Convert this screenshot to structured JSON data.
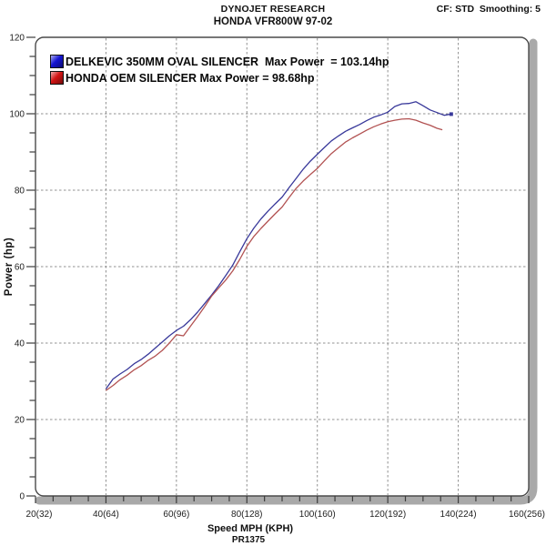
{
  "header": {
    "title_line1": "DYNOJET RESEARCH",
    "title_line2": "HONDA VFR800W 97-02",
    "settings": "CF: STD  Smoothing: 5"
  },
  "legend": {
    "items": [
      {
        "label": "DELKEVIC 350MM OVAL SILENCER  Max Power  = 103.14hp",
        "swatch_color": "#1414d2"
      },
      {
        "label": "HONDA OEM SILENCER Max Power = 98.68hp",
        "swatch_color": "#d21414"
      }
    ]
  },
  "axes": {
    "y_label": "Power (hp)",
    "x_label": "Speed MPH (KPH)",
    "run_id": "PR1375"
  },
  "chart_data": {
    "type": "line",
    "title": "DYNOJET RESEARCH - HONDA VFR800W 97-02",
    "xlabel": "Speed MPH (KPH)",
    "ylabel": "Power (hp)",
    "xlim": [
      20,
      160
    ],
    "ylim": [
      0,
      120
    ],
    "x_tick_values": [
      20,
      40,
      60,
      80,
      100,
      120,
      140,
      160
    ],
    "x_tick_labels": [
      "20(32)",
      "40(64)",
      "60(96)",
      "80(128)",
      "100(160)",
      "120(192)",
      "140(224)",
      "160(256)"
    ],
    "y_tick_values": [
      0,
      20,
      40,
      60,
      80,
      100,
      120
    ],
    "y_tick_labels": [
      "0",
      "20",
      "40",
      "60",
      "80",
      "100",
      "120"
    ],
    "minor_tick_step_x": 5,
    "minor_tick_step_y": 5,
    "grid": "dashed, on major ticks only",
    "legend_position": "top-left inside plot",
    "grid_color": "#909090",
    "axis_color": "#4a4a4a",
    "frame_shadow_color": "#a9a9a9",
    "series": [
      {
        "name": "DELKEVIC 350MM OVAL SILENCER",
        "max_power_hp": 103.14,
        "color": "#38389a",
        "end_marker": true,
        "x": [
          40,
          42,
          44,
          46,
          48,
          50,
          52,
          54,
          56,
          58,
          60,
          62,
          64,
          66,
          68,
          70,
          72,
          74,
          76,
          78,
          80,
          82,
          84,
          86,
          88,
          90,
          92,
          94,
          96,
          98,
          100,
          102,
          104,
          106,
          108,
          110,
          112,
          114,
          116,
          118,
          120,
          122,
          124,
          126,
          128,
          130,
          132,
          134,
          136,
          138
        ],
        "y": [
          28.0,
          30.6,
          31.9,
          33.1,
          34.6,
          35.7,
          37.1,
          38.7,
          40.3,
          41.9,
          43.3,
          44.4,
          46.1,
          48.1,
          50.3,
          52.6,
          55.0,
          57.7,
          60.4,
          63.9,
          67.3,
          70.1,
          72.5,
          74.5,
          76.4,
          78.2,
          80.7,
          83.1,
          85.5,
          87.6,
          89.4,
          91.2,
          92.9,
          94.2,
          95.4,
          96.3,
          97.2,
          98.2,
          99.1,
          99.7,
          100.4,
          101.9,
          102.6,
          102.7,
          103.14,
          102.1,
          101.0,
          100.3,
          99.6,
          99.9
        ]
      },
      {
        "name": "HONDA OEM SILENCER",
        "max_power_hp": 98.68,
        "color": "#b25252",
        "end_marker": false,
        "x": [
          40,
          42,
          44,
          46,
          48,
          50,
          52,
          54,
          56,
          58,
          60,
          62,
          64,
          66,
          68,
          70,
          72,
          74,
          76,
          78,
          80,
          82,
          84,
          86,
          88,
          90,
          92,
          94,
          96,
          98,
          100,
          102,
          104,
          106,
          108,
          110,
          112,
          114,
          116,
          118,
          120,
          122,
          124,
          126,
          128,
          130,
          132,
          134,
          135.5
        ],
        "y": [
          27.6,
          28.9,
          30.4,
          31.6,
          33.0,
          34.1,
          35.5,
          36.6,
          38.1,
          40.0,
          42.2,
          41.9,
          44.4,
          46.9,
          49.5,
          52.3,
          54.4,
          56.5,
          58.9,
          61.9,
          65.3,
          67.9,
          70.0,
          71.9,
          73.8,
          75.6,
          78.1,
          80.5,
          82.4,
          84.1,
          85.7,
          87.7,
          89.6,
          91.1,
          92.6,
          93.7,
          94.7,
          95.7,
          96.6,
          97.3,
          97.9,
          98.3,
          98.6,
          98.68,
          98.3,
          97.6,
          97.0,
          96.2,
          95.8
        ]
      }
    ]
  }
}
